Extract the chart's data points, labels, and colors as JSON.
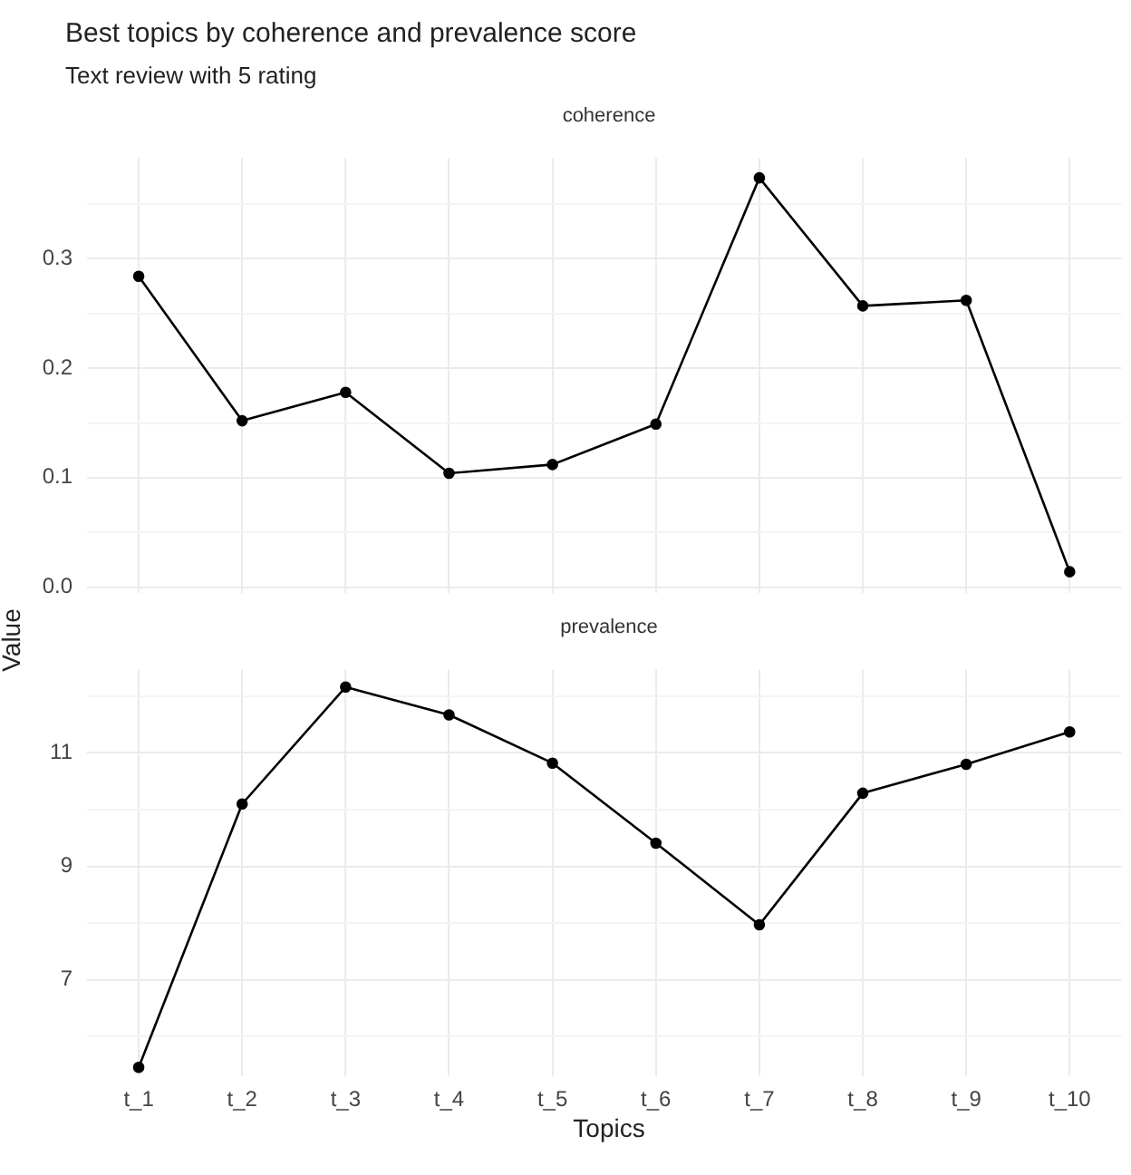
{
  "chart_data": [
    {
      "type": "line",
      "title": "Best topics by coherence and prevalence score",
      "subtitle": "Text review with 5 rating",
      "ylabel": "Value",
      "annotations": [
        "coherence"
      ],
      "categories": [
        null,
        null,
        null,
        null,
        null,
        null,
        null,
        null,
        null,
        null
      ],
      "series": [
        {
          "color": "#000000",
          "values": [
            0.284,
            0.152,
            0.178,
            0.104,
            0.112,
            0.149,
            0.374,
            0.257,
            0.262,
            0.014
          ]
        }
      ],
      "ylim": [
        -0.005,
        0.392
      ],
      "yticks": [
        {
          "value": 0,
          "label": "0.0"
        },
        {
          "value": 0.05,
          "label": null
        },
        0.1,
        {
          "value": 0.15,
          "label": null
        },
        0.2,
        {
          "value": 0.25,
          "label": null
        },
        0.3,
        {
          "value": 0.35,
          "label": null
        }
      ],
      "grid": true,
      "marker": "circle",
      "line_style": "solid",
      "tick_labels": "y"
    },
    {
      "type": "line",
      "xlabel": "Topics",
      "annotations": [
        "prevalence"
      ],
      "categories": [
        "t_1",
        "t_2",
        "t_3",
        "t_4",
        "t_5",
        "t_6",
        "t_7",
        "t_8",
        "t_9",
        "t_10"
      ],
      "series": [
        {
          "color": "#000000",
          "values": [
            5.46,
            10.1,
            12.16,
            11.67,
            10.82,
            9.41,
            7.97,
            10.29,
            10.8,
            11.37
          ]
        }
      ],
      "ylim": [
        5.3,
        12.47
      ],
      "yticks": [
        {
          "value": 6,
          "label": null
        },
        7,
        {
          "value": 8,
          "label": null
        },
        9,
        {
          "value": 10,
          "label": null
        },
        11,
        {
          "value": 12,
          "label": null
        }
      ],
      "grid": true,
      "marker": "circle",
      "line_style": "solid"
    }
  ]
}
